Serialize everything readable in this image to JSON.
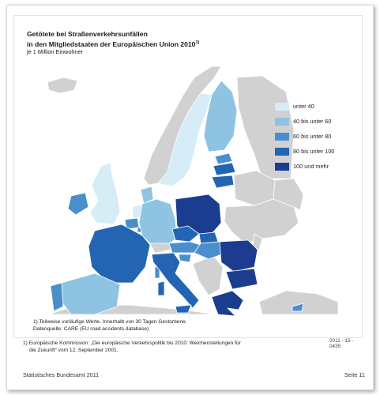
{
  "figure": {
    "title_line1": "Getötete bei Straßenverkehrsunfällen",
    "title_line2": "in den Mitgliedstaaten der Europäischen Union 2010",
    "title_superscript": "1)",
    "subtitle": "je 1 Million Einwohner",
    "note_line1": "1) Teilweise vorläufige Werte. Innerhalb von 30 Tagen Gestorbene.",
    "note_line2": "Datenquelle: CARE (EU road accidents database)",
    "code": "2011 - 15 - 0435"
  },
  "legend": [
    {
      "label": "unter 40",
      "color": "#d6ecf7"
    },
    {
      "label": "40 bis unter 60",
      "color": "#8fc3e2"
    },
    {
      "label": "60 bis unter 80",
      "color": "#4a8fcc"
    },
    {
      "label": "80 bis unter 100",
      "color": "#2465b3"
    },
    {
      "label": "100 und mehr",
      "color": "#1c3d8f"
    }
  ],
  "colors": {
    "background": "#ffffff",
    "land_non_eu": "#d1d1d1",
    "land_border": "#ffffff"
  },
  "footnote": {
    "line1": "1) Europäische Kommission: „Die europäische Verkehrspolitik bis 2010: Weichenstellungen für",
    "line2": "die Zukunft“ vom 12. September 2001."
  },
  "footer": {
    "publisher": "Statistisches Bundesamt 2011",
    "page": "Seite 11"
  }
}
